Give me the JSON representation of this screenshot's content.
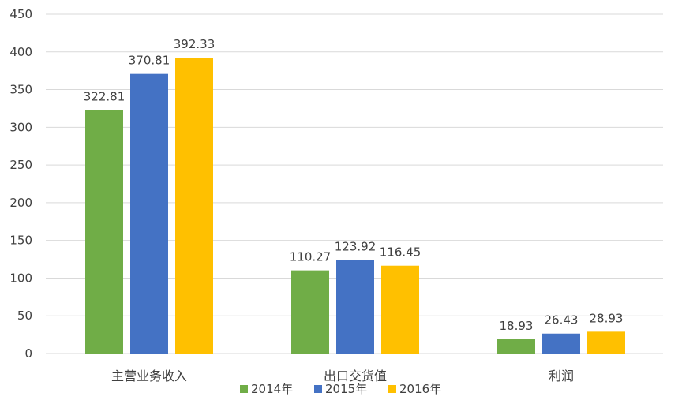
{
  "chart_data": {
    "type": "bar",
    "categories": [
      "主营业务收入",
      "出口交货值",
      "利润"
    ],
    "series": [
      {
        "name": "2014年",
        "values": [
          322.81,
          110.27,
          18.93
        ],
        "color": "#70ad47"
      },
      {
        "name": "2015年",
        "values": [
          370.81,
          123.92,
          26.43
        ],
        "color": "#4472c4"
      },
      {
        "name": "2016年",
        "values": [
          392.33,
          116.45,
          28.93
        ],
        "color": "#ffc000"
      }
    ],
    "data_labels": [
      [
        "322.81",
        "110.27",
        "18.93"
      ],
      [
        "370.81",
        "123.92",
        "26.43"
      ],
      [
        "392.33",
        "116.45",
        "28.93"
      ]
    ],
    "y_ticks": [
      "0",
      "50",
      "100",
      "150",
      "200",
      "250",
      "300",
      "350",
      "400",
      "450"
    ],
    "ylim": [
      0,
      450
    ],
    "grid": true,
    "legend_position": "bottom",
    "title": "",
    "xlabel": "",
    "ylabel": ""
  }
}
